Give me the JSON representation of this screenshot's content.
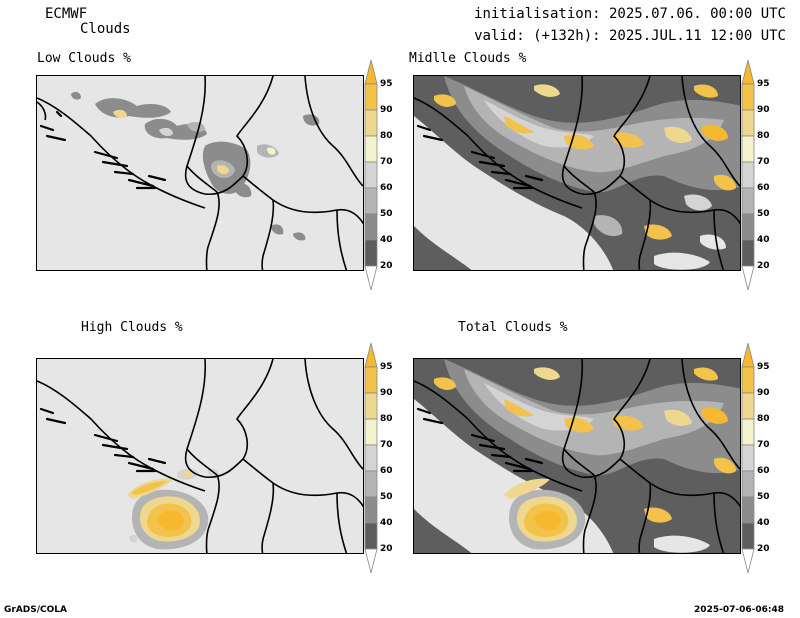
{
  "header": {
    "model": "ECMWF",
    "product": "Clouds",
    "initialisation": "initialisation: 2025.07.06. 00:00 UTC",
    "valid": "valid: (+132h): 2025.JUL.11 12:00 UTC"
  },
  "panels": [
    {
      "key": "low",
      "title": "Low Clouds %"
    },
    {
      "key": "middle",
      "title": "Midlle Clouds %"
    },
    {
      "key": "high",
      "title": "High Clouds %"
    },
    {
      "key": "total",
      "title": "Total Clouds %"
    }
  ],
  "colorbar": {
    "levels": [
      "95",
      "90",
      "80",
      "70",
      "60",
      "50",
      "40",
      "20"
    ],
    "colors": {
      "above95": "#f5b82e",
      "c90": "#f2c24a",
      "c80": "#eed890",
      "c70": "#f3f2cc",
      "c60": "#d4d4d4",
      "c50": "#b4b4b4",
      "c40": "#8c8c8c",
      "c20": "#5e5e5e",
      "below20": "#ffffff",
      "land": "#e6e6e6",
      "border": "#000000"
    }
  },
  "footer": {
    "left": "GrADS/COLA",
    "right": "2025-07-06-06:48"
  }
}
